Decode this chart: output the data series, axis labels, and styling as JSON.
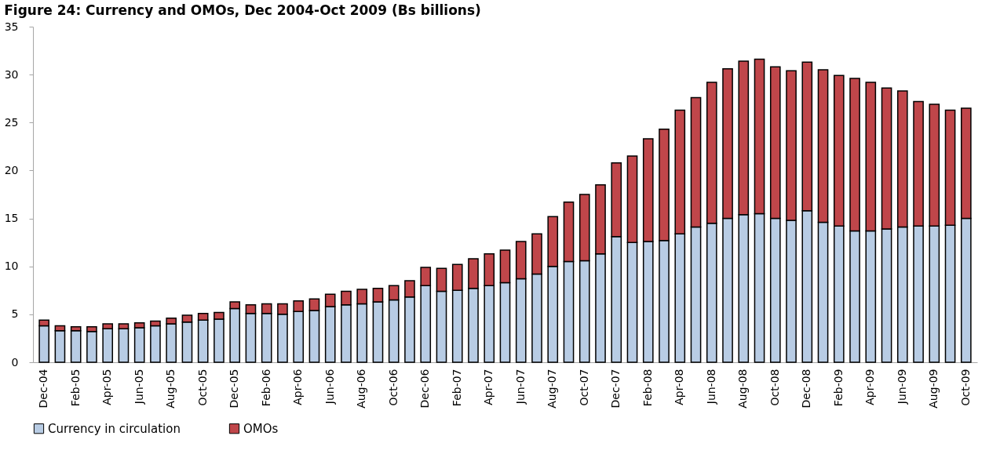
{
  "chart_data": {
    "type": "bar",
    "title": "Figure 24: Currency and OMOs, Dec 2004-Oct 2009 (Bs billions)",
    "stacked": true,
    "grid": false,
    "legend": "bottom",
    "ylim": [
      0,
      35
    ],
    "yticks": [
      0,
      5,
      10,
      15,
      20,
      25,
      30,
      35
    ],
    "categories": [
      "Dec-04",
      null,
      "Feb-05",
      null,
      "Apr-05",
      null,
      "Jun-05",
      null,
      "Aug-05",
      null,
      "Oct-05",
      null,
      "Dec-05",
      null,
      "Feb-06",
      null,
      "Apr-06",
      null,
      "Jun-06",
      null,
      "Aug-06",
      null,
      "Oct-06",
      null,
      "Dec-06",
      null,
      "Feb-07",
      null,
      "Apr-07",
      null,
      "Jun-07",
      null,
      "Aug-07",
      null,
      "Oct-07",
      null,
      "Dec-07",
      null,
      "Feb-08",
      null,
      "Apr-08",
      null,
      "Jun-08",
      null,
      "Aug-08",
      null,
      "Oct-08",
      null,
      "Dec-08",
      null,
      "Feb-09",
      null,
      "Apr-09",
      null,
      "Jun-09",
      null,
      "Aug-09",
      null,
      "Oct-09"
    ],
    "series": [
      {
        "name": "Currency in circulation",
        "color": "#b8cce4",
        "values": [
          3.8,
          3.3,
          3.3,
          3.2,
          3.5,
          3.5,
          3.6,
          3.8,
          4.0,
          4.2,
          4.4,
          4.5,
          5.6,
          5.1,
          5.1,
          5.0,
          5.3,
          5.4,
          5.8,
          6.0,
          6.1,
          6.3,
          6.5,
          6.8,
          8.0,
          7.4,
          7.5,
          7.7,
          8.0,
          8.3,
          8.7,
          9.2,
          10.0,
          10.5,
          10.6,
          11.3,
          13.1,
          12.5,
          12.6,
          12.7,
          13.4,
          14.1,
          14.5,
          15.0,
          15.4,
          15.5,
          15.0,
          14.8,
          15.8,
          14.6,
          14.2,
          13.7,
          13.7,
          13.9,
          14.1,
          14.2,
          14.2,
          14.3,
          15.0
        ]
      },
      {
        "name": "OMOs",
        "color": "#c0464a",
        "values": [
          0.6,
          0.5,
          0.4,
          0.5,
          0.5,
          0.5,
          0.5,
          0.5,
          0.6,
          0.7,
          0.7,
          0.7,
          0.7,
          0.9,
          1.0,
          1.1,
          1.1,
          1.2,
          1.3,
          1.4,
          1.5,
          1.4,
          1.5,
          1.7,
          1.9,
          2.4,
          2.7,
          3.1,
          3.3,
          3.4,
          3.9,
          4.2,
          5.2,
          6.2,
          6.9,
          7.2,
          7.7,
          9.0,
          10.7,
          11.6,
          12.9,
          13.5,
          14.7,
          15.6,
          16.0,
          16.1,
          15.8,
          15.6,
          15.5,
          15.9,
          15.7,
          15.9,
          15.5,
          14.7,
          14.2,
          13.0,
          12.7,
          12.0,
          11.5
        ]
      }
    ]
  }
}
